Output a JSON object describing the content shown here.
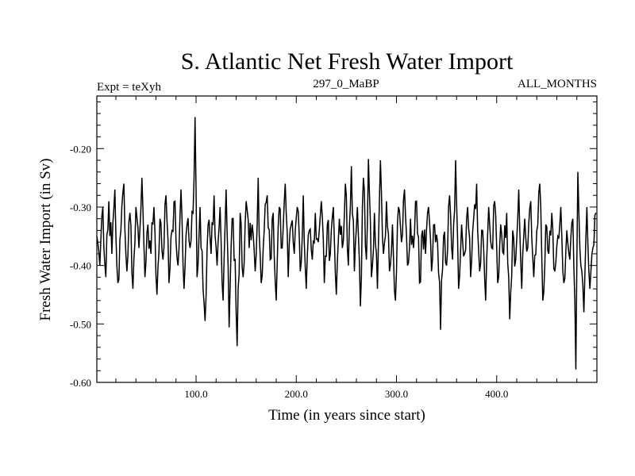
{
  "chart_data": {
    "type": "line",
    "title": "S. Atlantic Net Fresh Water Import",
    "subtitle_left": "Expt = teXyh",
    "subtitle_center": "297_0_MaBP",
    "subtitle_right": "ALL_MONTHS",
    "xlabel": "Time (in years since start)",
    "ylabel": "Fresh Water Import (in Sv)",
    "xlim": [
      1,
      500
    ],
    "ylim": [
      -0.6,
      -0.11
    ],
    "xticks": [
      100,
      200,
      300,
      400
    ],
    "xtick_labels": [
      "100.0",
      "200.0",
      "300.0",
      "400.0"
    ],
    "yticks": [
      -0.6,
      -0.5,
      -0.4,
      -0.3,
      -0.2
    ],
    "ytick_labels": [
      "-0.60",
      "-0.50",
      "-0.40",
      "-0.30",
      "-0.20"
    ],
    "grid": false,
    "line_color": "#000000",
    "baseline": -0.362,
    "series": [
      {
        "points": [
          [
            1,
            -0.35
          ],
          [
            4,
            -0.4
          ],
          [
            7,
            -0.3
          ],
          [
            10,
            -0.42
          ],
          [
            13,
            -0.29
          ],
          [
            16,
            -0.38
          ],
          [
            19,
            -0.27
          ],
          [
            22,
            -0.43
          ],
          [
            25,
            -0.34
          ],
          [
            28,
            -0.26
          ],
          [
            31,
            -0.41
          ],
          [
            34,
            -0.31
          ],
          [
            37,
            -0.44
          ],
          [
            40,
            -0.3
          ],
          [
            43,
            -0.37
          ],
          [
            46,
            -0.25
          ],
          [
            49,
            -0.42
          ],
          [
            52,
            -0.33
          ],
          [
            55,
            -0.38
          ],
          [
            58,
            -0.3
          ],
          [
            61,
            -0.45
          ],
          [
            64,
            -0.32
          ],
          [
            67,
            -0.39
          ],
          [
            70,
            -0.28
          ],
          [
            73,
            -0.43
          ],
          [
            76,
            -0.34
          ],
          [
            79,
            -0.29
          ],
          [
            82,
            -0.4
          ],
          [
            85,
            -0.27
          ],
          [
            88,
            -0.44
          ],
          [
            91,
            -0.33
          ],
          [
            94,
            -0.37
          ],
          [
            97,
            -0.31
          ],
          [
            99,
            -0.146
          ],
          [
            101,
            -0.42
          ],
          [
            104,
            -0.3
          ],
          [
            107,
            -0.44
          ],
          [
            109,
            -0.495
          ],
          [
            112,
            -0.33
          ],
          [
            115,
            -0.38
          ],
          [
            118,
            -0.28
          ],
          [
            121,
            -0.4
          ],
          [
            124,
            -0.3
          ],
          [
            127,
            -0.46
          ],
          [
            130,
            -0.27
          ],
          [
            133,
            -0.506
          ],
          [
            136,
            -0.32
          ],
          [
            139,
            -0.39
          ],
          [
            141,
            -0.538
          ],
          [
            144,
            -0.31
          ],
          [
            147,
            -0.42
          ],
          [
            150,
            -0.29
          ],
          [
            153,
            -0.37
          ],
          [
            156,
            -0.33
          ],
          [
            159,
            -0.41
          ],
          [
            162,
            -0.25
          ],
          [
            165,
            -0.43
          ],
          [
            168,
            -0.34
          ],
          [
            171,
            -0.28
          ],
          [
            174,
            -0.39
          ],
          [
            177,
            -0.31
          ],
          [
            180,
            -0.46
          ],
          [
            183,
            -0.3
          ],
          [
            186,
            -0.37
          ],
          [
            189,
            -0.26
          ],
          [
            192,
            -0.42
          ],
          [
            195,
            -0.33
          ],
          [
            198,
            -0.38
          ],
          [
            201,
            -0.3
          ],
          [
            204,
            -0.41
          ],
          [
            207,
            -0.28
          ],
          [
            210,
            -0.44
          ],
          [
            213,
            -0.34
          ],
          [
            216,
            -0.39
          ],
          [
            219,
            -0.31
          ],
          [
            222,
            -0.36
          ],
          [
            225,
            -0.29
          ],
          [
            228,
            -0.43
          ],
          [
            231,
            -0.33
          ],
          [
            234,
            -0.38
          ],
          [
            237,
            -0.3
          ],
          [
            240,
            -0.45
          ],
          [
            243,
            -0.32
          ],
          [
            246,
            -0.37
          ],
          [
            249,
            -0.26
          ],
          [
            252,
            -0.4
          ],
          [
            255,
            -0.23
          ],
          [
            258,
            -0.41
          ],
          [
            261,
            -0.3
          ],
          [
            264,
            -0.47
          ],
          [
            267,
            -0.25
          ],
          [
            270,
            -0.39
          ],
          [
            272,
            -0.218
          ],
          [
            275,
            -0.42
          ],
          [
            278,
            -0.31
          ],
          [
            281,
            -0.44
          ],
          [
            284,
            -0.22
          ],
          [
            287,
            -0.38
          ],
          [
            290,
            -0.29
          ],
          [
            293,
            -0.41
          ],
          [
            296,
            -0.33
          ],
          [
            299,
            -0.46
          ],
          [
            302,
            -0.3
          ],
          [
            305,
            -0.36
          ],
          [
            308,
            -0.27
          ],
          [
            311,
            -0.4
          ],
          [
            314,
            -0.32
          ],
          [
            317,
            -0.37
          ],
          [
            320,
            -0.29
          ],
          [
            323,
            -0.43
          ],
          [
            326,
            -0.34
          ],
          [
            329,
            -0.38
          ],
          [
            332,
            -0.3
          ],
          [
            335,
            -0.41
          ],
          [
            338,
            -0.33
          ],
          [
            341,
            -0.36
          ],
          [
            344,
            -0.51
          ],
          [
            347,
            -0.35
          ],
          [
            350,
            -0.4
          ],
          [
            353,
            -0.28
          ],
          [
            356,
            -0.39
          ],
          [
            359,
            -0.22
          ],
          [
            362,
            -0.44
          ],
          [
            365,
            -0.33
          ],
          [
            368,
            -0.38
          ],
          [
            371,
            -0.3
          ],
          [
            374,
            -0.42
          ],
          [
            377,
            -0.32
          ],
          [
            380,
            -0.26
          ],
          [
            383,
            -0.41
          ],
          [
            386,
            -0.34
          ],
          [
            389,
            -0.46
          ],
          [
            392,
            -0.3
          ],
          [
            395,
            -0.37
          ],
          [
            398,
            -0.29
          ],
          [
            401,
            -0.43
          ],
          [
            404,
            -0.33
          ],
          [
            407,
            -0.38
          ],
          [
            410,
            -0.31
          ],
          [
            413,
            -0.492
          ],
          [
            416,
            -0.34
          ],
          [
            419,
            -0.39
          ],
          [
            422,
            -0.27
          ],
          [
            425,
            -0.44
          ],
          [
            428,
            -0.32
          ],
          [
            431,
            -0.37
          ],
          [
            434,
            -0.29
          ],
          [
            437,
            -0.42
          ],
          [
            440,
            -0.34
          ],
          [
            443,
            -0.26
          ],
          [
            446,
            -0.46
          ],
          [
            449,
            -0.33
          ],
          [
            452,
            -0.38
          ],
          [
            455,
            -0.31
          ],
          [
            458,
            -0.41
          ],
          [
            461,
            -0.35
          ],
          [
            464,
            -0.3
          ],
          [
            467,
            -0.43
          ],
          [
            470,
            -0.34
          ],
          [
            473,
            -0.39
          ],
          [
            476,
            -0.32
          ],
          [
            479,
            -0.578
          ],
          [
            481,
            -0.24
          ],
          [
            484,
            -0.4
          ],
          [
            487,
            -0.48
          ],
          [
            490,
            -0.3
          ],
          [
            493,
            -0.44
          ],
          [
            496,
            -0.37
          ],
          [
            499,
            -0.31
          ]
        ]
      }
    ]
  }
}
